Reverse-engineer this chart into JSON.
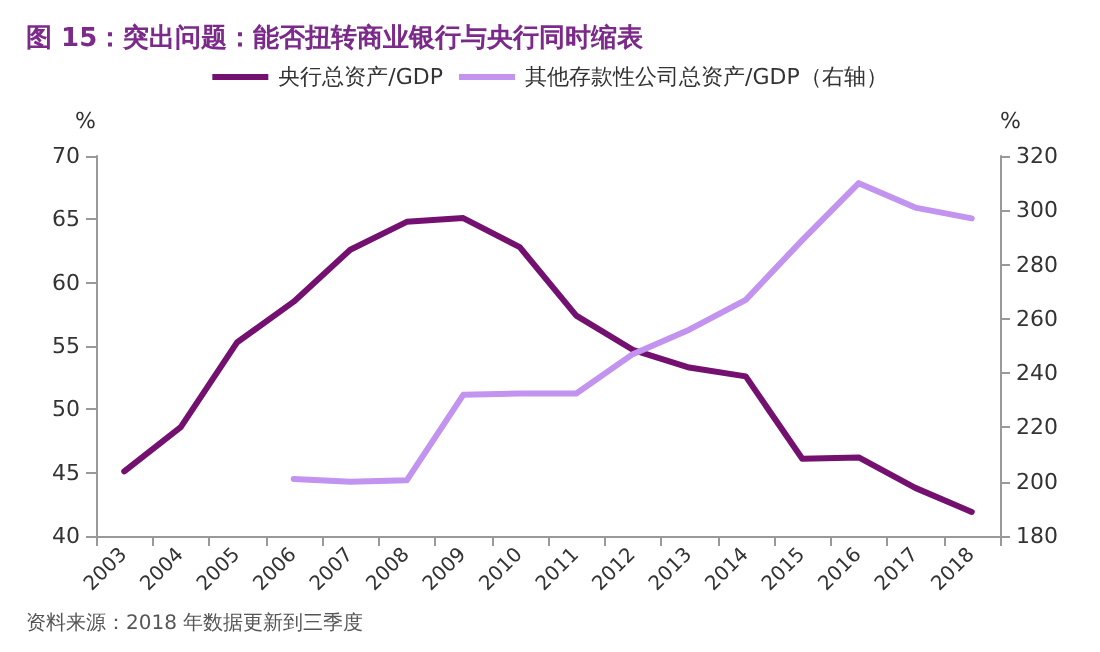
{
  "chart_data": {
    "type": "line",
    "title": "图 15：突出问题：能否扭转商业银行与央行同时缩表",
    "ylabel": "%",
    "y2label": "%",
    "categories": [
      "2003",
      "2004",
      "2005",
      "2006",
      "2007",
      "2008",
      "2009",
      "2010",
      "2011",
      "2012",
      "2013",
      "2014",
      "2015",
      "2016",
      "2017",
      "2018"
    ],
    "series": [
      {
        "name": "央行总资产/GDP",
        "color": "#74106f",
        "values": [
          45.1,
          48.6,
          55.3,
          58.5,
          62.6,
          64.8,
          65.1,
          62.8,
          57.4,
          54.7,
          53.3,
          52.6,
          46.1,
          46.2,
          43.8,
          41.9
        ]
      },
      {
        "name": "其他存款性公司总资产/GDP（右轴）",
        "color": "#c393f0",
        "axis": "y2",
        "values": [
          null,
          null,
          null,
          201,
          200,
          200.5,
          232,
          232.5,
          232.5,
          247,
          256,
          267,
          289,
          310,
          301,
          297
        ]
      }
    ],
    "ylim": [
      40,
      70
    ],
    "yticks": [
      40,
      45,
      50,
      55,
      60,
      65,
      70
    ],
    "y2lim": [
      180,
      320
    ],
    "y2ticks": [
      180,
      200,
      220,
      240,
      260,
      280,
      300,
      320
    ],
    "grid": false,
    "legend": "top",
    "marker": "none",
    "line_style": "solid",
    "annotations": [
      "资料来源：2018 年数据更新到三季度"
    ]
  }
}
